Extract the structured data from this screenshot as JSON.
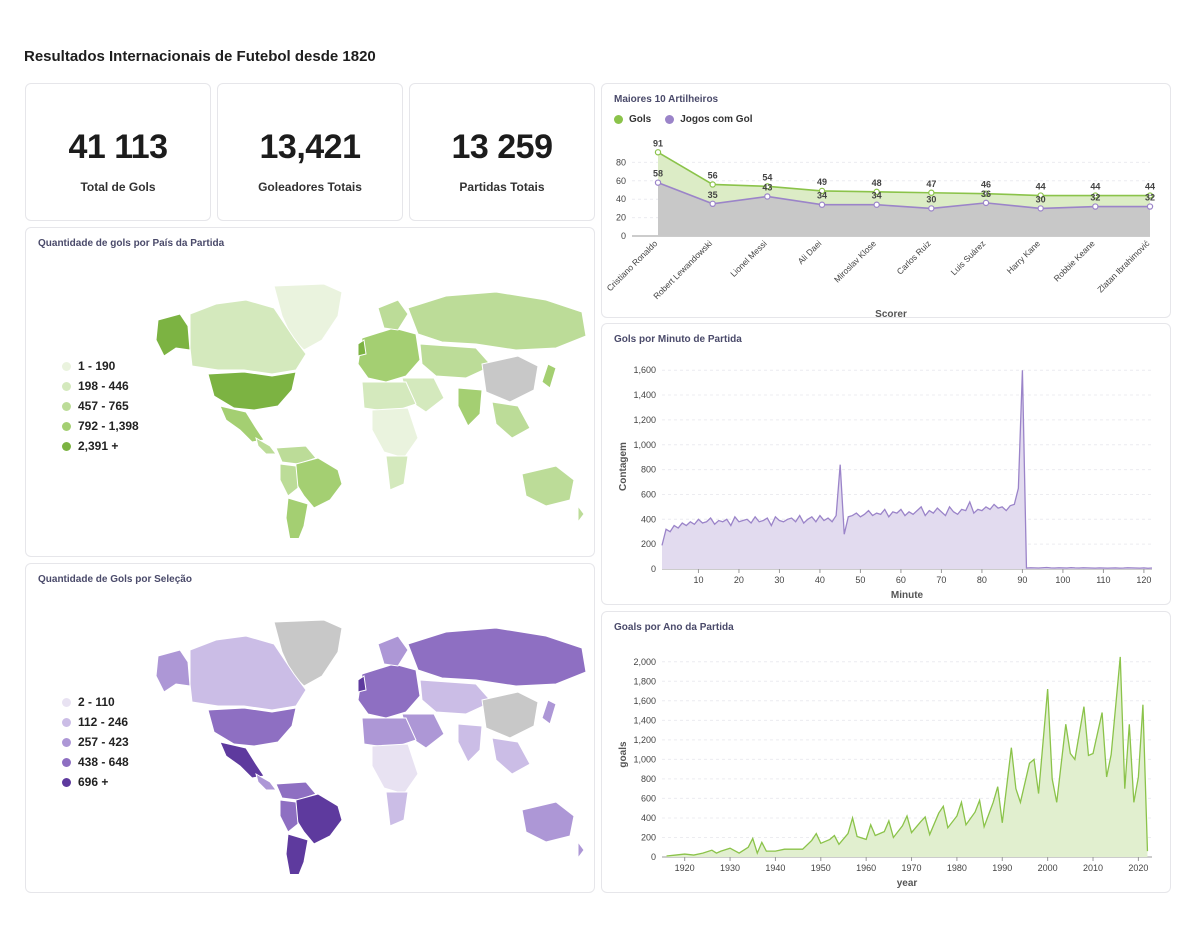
{
  "page": {
    "title": "Resultados Internacionais de Futebol desde 1820"
  },
  "kpis": [
    {
      "value": "41 113",
      "label": "Total de Gols"
    },
    {
      "value": "13,421",
      "label": "Goleadores Totais"
    },
    {
      "value": "13 259",
      "label": "Partidas Totais"
    }
  ],
  "map_country": {
    "title": "Quantidade de gols por País da Partida",
    "legend": [
      {
        "label": "1 - 190",
        "color": "#eaf3de"
      },
      {
        "label": "198 - 446",
        "color": "#d4e9bd"
      },
      {
        "label": "457 - 765",
        "color": "#bcdc98"
      },
      {
        "label": "792 - 1,398",
        "color": "#a4cf72"
      },
      {
        "label": "2,391 +",
        "color": "#7cb342"
      }
    ]
  },
  "map_team": {
    "title": "Quantidade de Gols por Seleção",
    "legend": [
      {
        "label": "2 - 110",
        "color": "#e8e2f2"
      },
      {
        "label": "112 - 246",
        "color": "#cbbde6"
      },
      {
        "label": "257 - 423",
        "color": "#ad97d6"
      },
      {
        "label": "438 - 648",
        "color": "#8e6fc2"
      },
      {
        "label": "696 +",
        "color": "#5e3a9e"
      }
    ]
  },
  "colors": {
    "green": "#8bc34a",
    "purple": "#9b84c9",
    "gray_fill": "#c8c8c8"
  },
  "chart_data": [
    {
      "type": "line",
      "title": "Maiores 10 Artilheiros",
      "xlabel": "Scorer",
      "ylabel": "",
      "ylim": [
        0,
        100
      ],
      "yticks": [
        "0",
        "20",
        "40",
        "60",
        "80"
      ],
      "categories": [
        "Cristiano Ronaldo",
        "Robert Lewandowski",
        "Lionel Messi",
        "Ali Daei",
        "Miroslav Klose",
        "Carlos Ruiz",
        "Luis Suárez",
        "Harry Kane",
        "Robbie Keane",
        "Zlatan Ibrahimović"
      ],
      "series": [
        {
          "name": "Gols",
          "values": [
            91,
            56,
            54,
            49,
            48,
            47,
            46,
            44,
            44,
            44
          ]
        },
        {
          "name": "Jogos com Gol",
          "values": [
            58,
            35,
            43,
            34,
            34,
            30,
            36,
            30,
            32,
            32
          ]
        }
      ]
    },
    {
      "type": "area",
      "title": "Gols por Minuto de Partida",
      "xlabel": "Minute",
      "ylabel": "Contagem",
      "xlim": [
        1,
        122
      ],
      "ylim": [
        0,
        1650
      ],
      "xticks": [
        "10",
        "20",
        "30",
        "40",
        "50",
        "60",
        "70",
        "80",
        "90",
        "100",
        "110",
        "120"
      ],
      "yticks": [
        "0",
        "200",
        "400",
        "600",
        "800",
        "1,000",
        "1,200",
        "1,400",
        "1,600"
      ],
      "x_start": 1,
      "values": [
        190,
        320,
        300,
        350,
        330,
        370,
        350,
        380,
        360,
        400,
        370,
        380,
        410,
        360,
        390,
        380,
        400,
        350,
        420,
        380,
        390,
        400,
        370,
        420,
        380,
        390,
        410,
        350,
        420,
        390,
        380,
        400,
        410,
        380,
        430,
        370,
        400,
        420,
        380,
        430,
        390,
        410,
        380,
        430,
        840,
        280,
        420,
        430,
        450,
        420,
        440,
        470,
        430,
        450,
        440,
        480,
        420,
        460,
        450,
        480,
        430,
        460,
        440,
        470,
        500,
        430,
        470,
        450,
        490,
        460,
        430,
        500,
        460,
        440,
        480,
        470,
        540,
        450,
        480,
        470,
        500,
        480,
        520,
        490,
        500,
        470,
        510,
        520,
        650,
        1600,
        8,
        10,
        9,
        8,
        10,
        12,
        9,
        8,
        10,
        9,
        8,
        11,
        9,
        8,
        10,
        9,
        8,
        7,
        9,
        8,
        7,
        8,
        9,
        7,
        8,
        10,
        9,
        8,
        7,
        9,
        6,
        8
      ]
    },
    {
      "type": "area",
      "title": "Goals por Ano da Partida",
      "xlabel": "year",
      "ylabel": "goals",
      "xlim": [
        1915,
        2023
      ],
      "ylim": [
        0,
        2100
      ],
      "xticks": [
        "1920",
        "1930",
        "1940",
        "1950",
        "1960",
        "1970",
        "1980",
        "1990",
        "2000",
        "2010",
        "2020"
      ],
      "yticks": [
        "0",
        "200",
        "400",
        "600",
        "800",
        "1,000",
        "1,200",
        "1,400",
        "1,600",
        "1,800",
        "2,000"
      ],
      "x": [
        1916,
        1918,
        1920,
        1922,
        1924,
        1926,
        1927,
        1928,
        1930,
        1932,
        1934,
        1935,
        1936,
        1937,
        1938,
        1940,
        1942,
        1944,
        1946,
        1948,
        1949,
        1950,
        1952,
        1953,
        1954,
        1956,
        1957,
        1958,
        1960,
        1961,
        1962,
        1964,
        1965,
        1966,
        1968,
        1969,
        1970,
        1972,
        1973,
        1974,
        1976,
        1977,
        1978,
        1980,
        1981,
        1982,
        1984,
        1985,
        1986,
        1988,
        1989,
        1990,
        1992,
        1993,
        1994,
        1996,
        1997,
        1998,
        2000,
        2001,
        2002,
        2004,
        2005,
        2006,
        2008,
        2009,
        2010,
        2012,
        2013,
        2014,
        2016,
        2017,
        2018,
        2019,
        2020,
        2021,
        2022
      ],
      "values": [
        10,
        20,
        30,
        20,
        40,
        70,
        40,
        60,
        90,
        40,
        100,
        190,
        40,
        150,
        60,
        60,
        80,
        80,
        80,
        170,
        240,
        140,
        180,
        220,
        130,
        240,
        400,
        210,
        180,
        330,
        220,
        260,
        370,
        200,
        320,
        420,
        250,
        360,
        410,
        230,
        450,
        520,
        300,
        420,
        560,
        330,
        460,
        580,
        310,
        560,
        720,
        350,
        1120,
        700,
        560,
        960,
        1000,
        650,
        1720,
        800,
        560,
        1360,
        1060,
        1000,
        1540,
        1040,
        1060,
        1480,
        820,
        1050,
        2050,
        700,
        1360,
        560,
        820,
        1560,
        60
      ]
    }
  ]
}
